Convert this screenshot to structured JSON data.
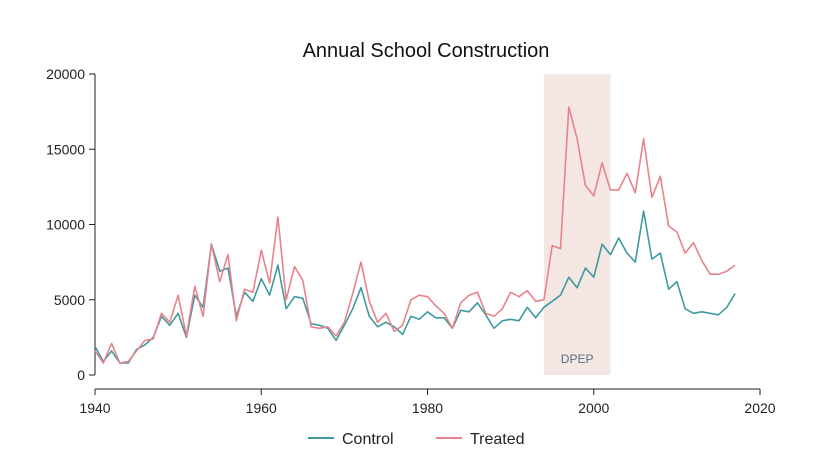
{
  "chart_data": {
    "type": "line",
    "title": "Annual School Construction",
    "xlabel": "",
    "ylabel": "",
    "xlim": [
      1940,
      2020
    ],
    "ylim": [
      0,
      20000
    ],
    "x_ticks": [
      1940,
      1960,
      1980,
      2000,
      2020
    ],
    "y_ticks": [
      0,
      5000,
      10000,
      15000,
      20000
    ],
    "grid": false,
    "legend_position": "bottom",
    "shaded_region": {
      "label": "DPEP",
      "x_start": 1994,
      "x_end": 2002,
      "color": "#f3e6e3"
    },
    "x": [
      1940,
      1941,
      1942,
      1943,
      1944,
      1945,
      1946,
      1947,
      1948,
      1949,
      1950,
      1951,
      1952,
      1953,
      1954,
      1955,
      1956,
      1957,
      1958,
      1959,
      1960,
      1961,
      1962,
      1963,
      1964,
      1965,
      1966,
      1967,
      1968,
      1969,
      1970,
      1971,
      1972,
      1973,
      1974,
      1975,
      1976,
      1977,
      1978,
      1979,
      1980,
      1981,
      1982,
      1983,
      1984,
      1985,
      1986,
      1987,
      1988,
      1989,
      1990,
      1991,
      1992,
      1993,
      1994,
      1995,
      1996,
      1997,
      1998,
      1999,
      2000,
      2001,
      2002,
      2003,
      2004,
      2005,
      2006,
      2007,
      2008,
      2009,
      2010,
      2011,
      2012,
      2013,
      2014,
      2015,
      2016,
      2017
    ],
    "series": [
      {
        "name": "Control",
        "color": "#3f9aa0",
        "values": [
          1900,
          900,
          1600,
          800,
          800,
          1700,
          2000,
          2500,
          3900,
          3300,
          4100,
          2500,
          5300,
          4500,
          8700,
          6900,
          7100,
          3900,
          5500,
          4900,
          6400,
          5300,
          7300,
          4400,
          5200,
          5100,
          3400,
          3300,
          3100,
          2300,
          3300,
          4400,
          5800,
          3900,
          3200,
          3500,
          3200,
          2700,
          3900,
          3700,
          4200,
          3800,
          3800,
          3100,
          4300,
          4200,
          4800,
          4000,
          3100,
          3600,
          3700,
          3600,
          4500,
          3800,
          4500,
          4900,
          5300,
          6500,
          5800,
          7100,
          6500,
          8700,
          8000,
          9100,
          8100,
          7500,
          10900,
          7700,
          8100,
          5700,
          6200,
          4400,
          4100,
          4200,
          4100,
          4000,
          4500,
          5400
        ]
      },
      {
        "name": "Treated",
        "color": "#e8838a",
        "values": [
          1600,
          800,
          2100,
          800,
          900,
          1600,
          2300,
          2400,
          4100,
          3500,
          5300,
          2600,
          5900,
          3900,
          8700,
          6200,
          8000,
          3600,
          5700,
          5500,
          8300,
          6100,
          10500,
          5000,
          7200,
          6300,
          3200,
          3100,
          3200,
          2600,
          3500,
          5400,
          7500,
          4900,
          3500,
          4100,
          2900,
          3300,
          5000,
          5300,
          5200,
          4600,
          4100,
          3100,
          4800,
          5300,
          5500,
          4100,
          3900,
          4400,
          5500,
          5200,
          5600,
          4900,
          5000,
          8600,
          8400,
          17800,
          15700,
          12600,
          11900,
          14100,
          12300,
          12300,
          13400,
          12100,
          15700,
          11800,
          13200,
          9900,
          9500,
          8100,
          8800,
          7600,
          6700,
          6700,
          6900,
          7300
        ]
      }
    ]
  }
}
